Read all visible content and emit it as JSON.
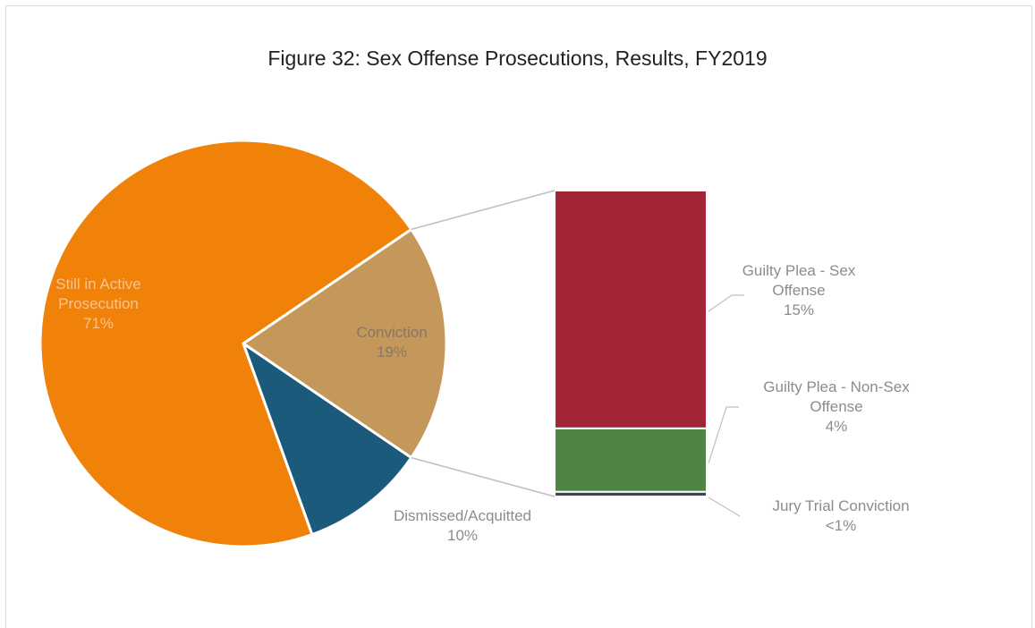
{
  "chart_data": {
    "type": "pie-of-bar",
    "title": "Figure 32: Sex Offense Prosecutions, Results, FY2019",
    "categories": [
      "Still in Active Prosecution",
      "Conviction",
      "Dismissed/Acquitted"
    ],
    "values": [
      71,
      19,
      10
    ],
    "value_labels": [
      "71%",
      "19%",
      "10%"
    ],
    "colors": [
      "#f0820a",
      "#c4975a",
      "#1c5a7c"
    ],
    "breakdown": {
      "categories": [
        "Guilty Plea - Sex Offense",
        "Guilty Plea - Non-Sex Offense",
        "Jury Trial Conviction"
      ],
      "values": [
        15,
        4,
        0.3
      ],
      "value_labels": [
        "15%",
        "4%",
        "<1%"
      ],
      "colors": [
        "#a22537",
        "#4e8542",
        "#3b4756"
      ]
    }
  }
}
